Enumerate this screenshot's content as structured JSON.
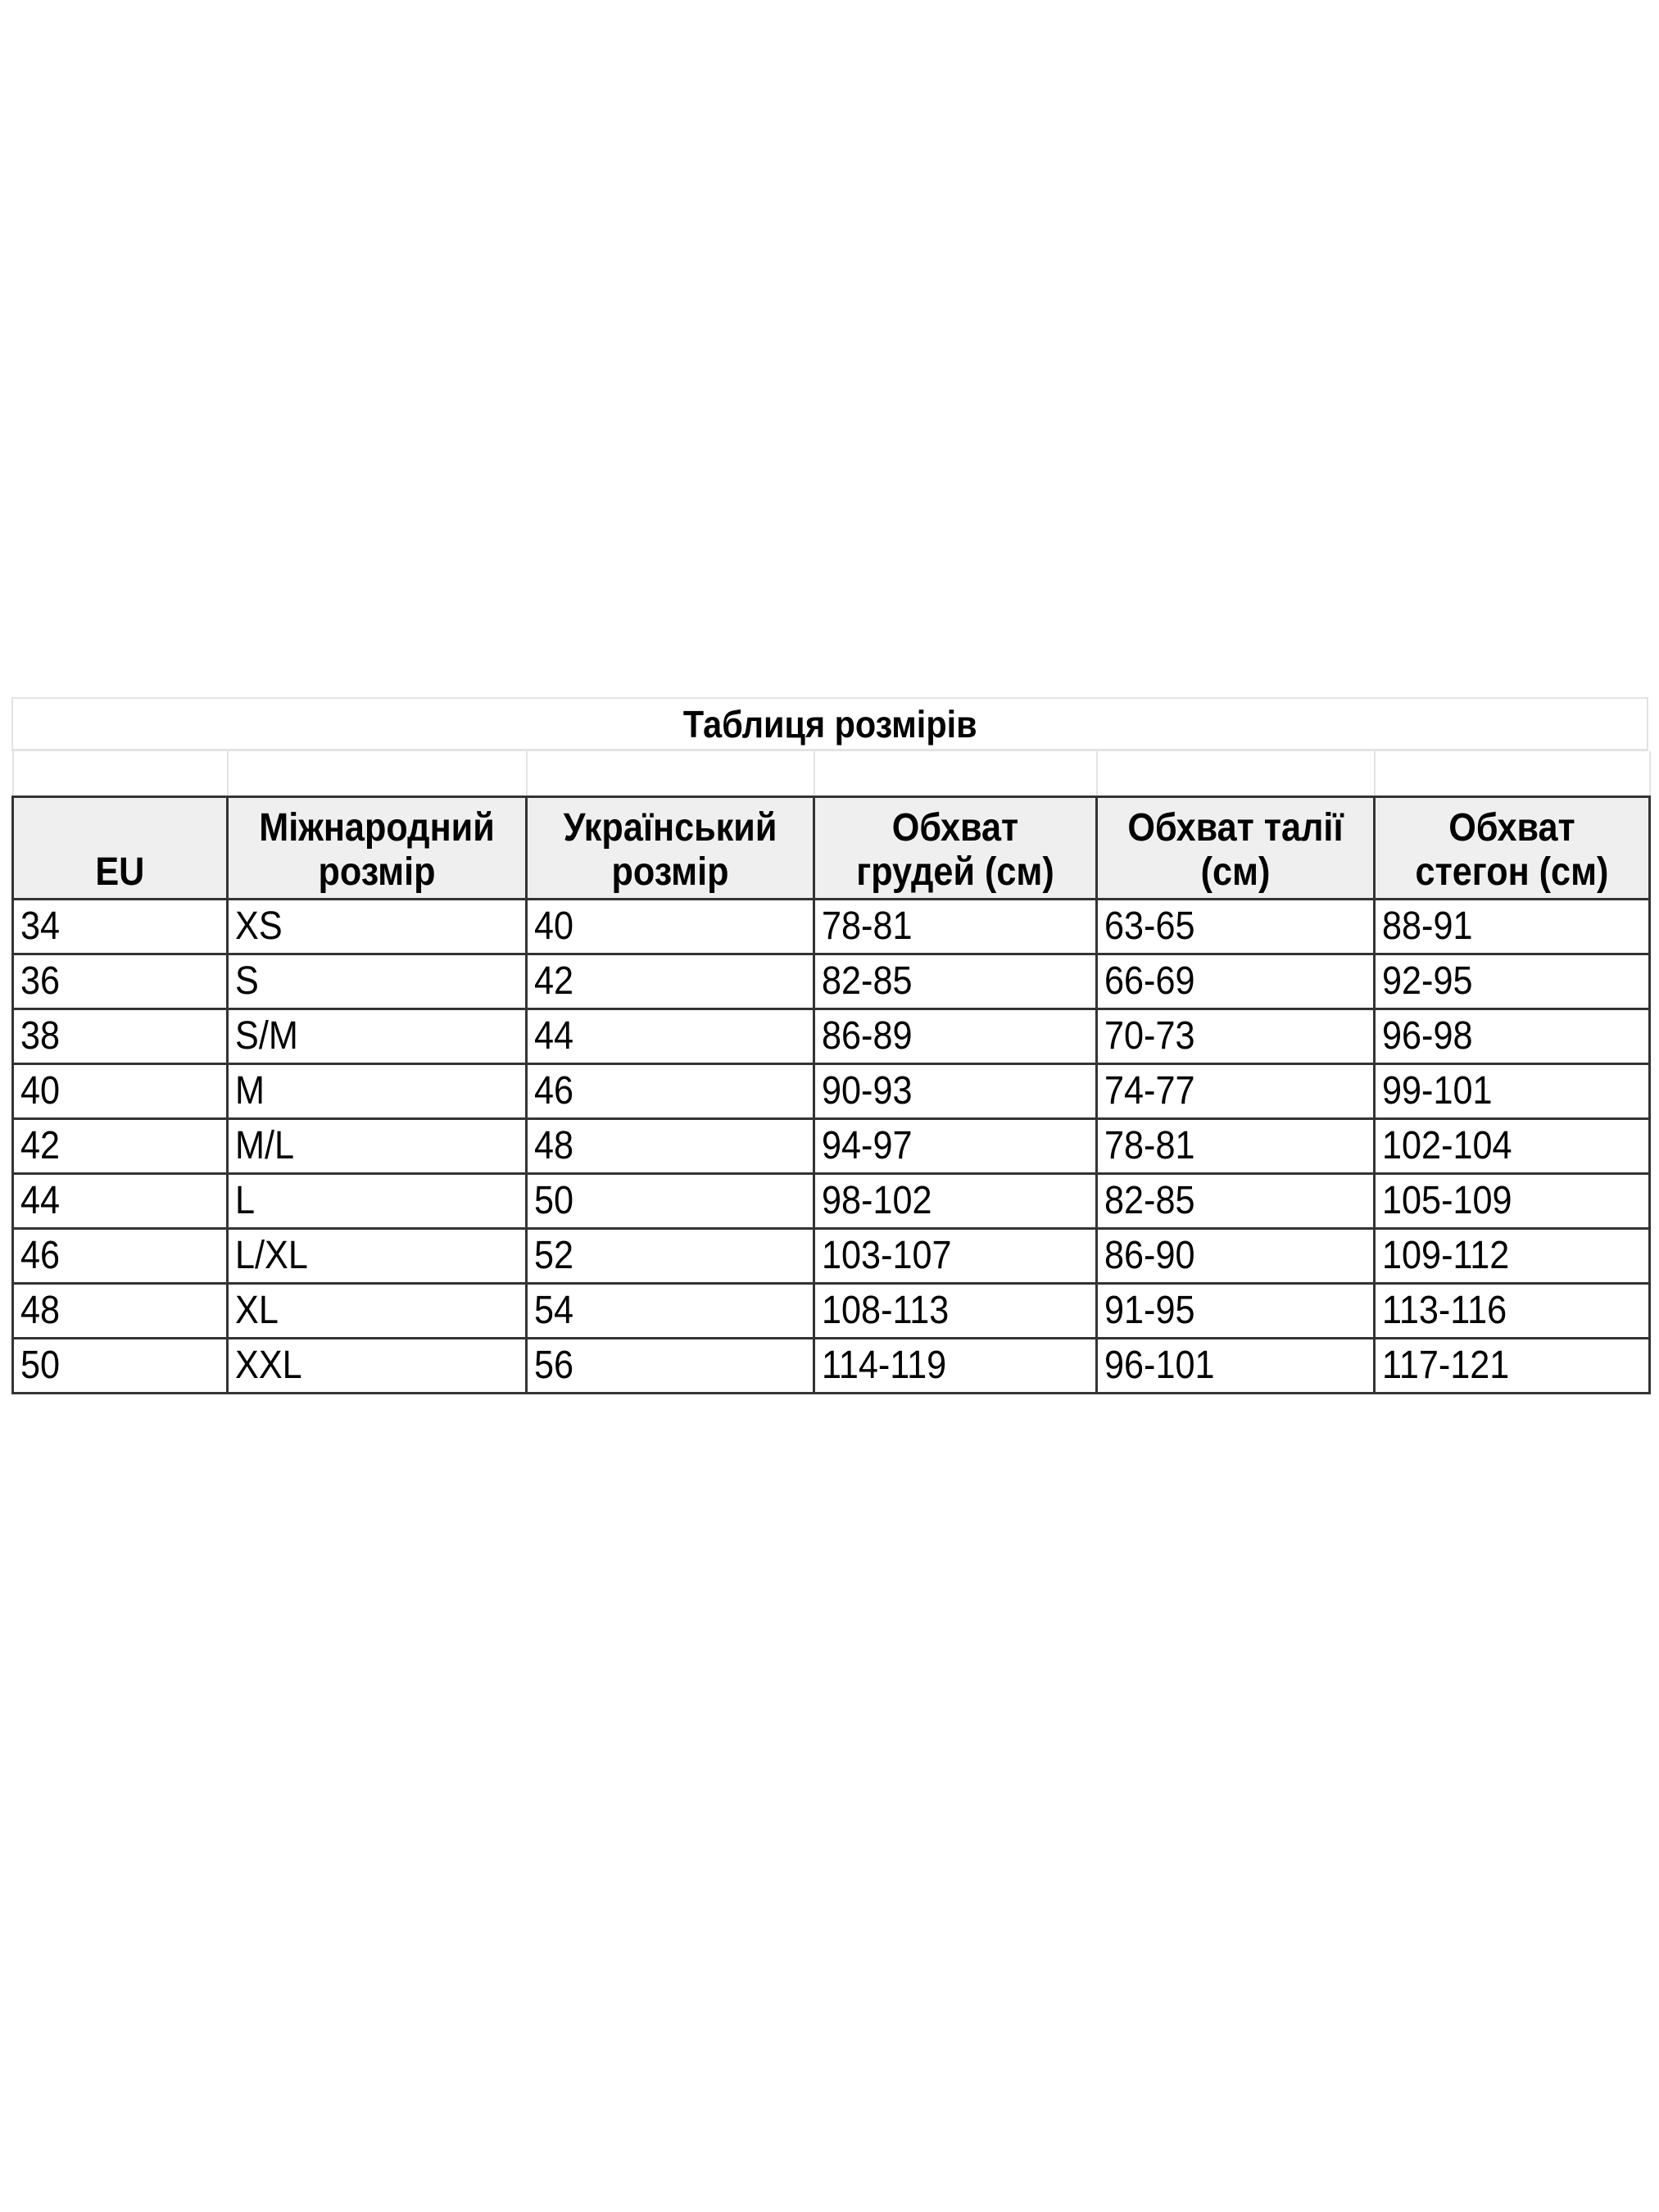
{
  "title": "Таблиця розмірів",
  "columns": [
    "EU",
    "Міжнародний розмір",
    "Український розмір",
    "Обхват грудей (см)",
    "Обхват талії (см)",
    "Обхват стегон (см)"
  ],
  "rows": [
    [
      "34",
      "XS",
      "40",
      "78-81",
      "63-65",
      "88-91"
    ],
    [
      "36",
      "S",
      "42",
      "82-85",
      "66-69",
      "92-95"
    ],
    [
      "38",
      "S/M",
      "44",
      "86-89",
      "70-73",
      "96-98"
    ],
    [
      "40",
      "M",
      "46",
      "90-93",
      "74-77",
      "99-101"
    ],
    [
      "42",
      "M/L",
      "48",
      "94-97",
      "78-81",
      "102-104"
    ],
    [
      "44",
      "L",
      "50",
      "98-102",
      "82-85",
      "105-109"
    ],
    [
      "46",
      "L/XL",
      "52",
      "103-107",
      "86-90",
      "109-112"
    ],
    [
      "48",
      "XL",
      "54",
      "108-113",
      "91-95",
      "113-116"
    ],
    [
      "50",
      "XXL",
      "56",
      "114-119",
      "96-101",
      "117-121"
    ]
  ],
  "colors": {
    "header_bg": "#efefef",
    "border": "#333333",
    "light_border": "#e3e3e3"
  }
}
